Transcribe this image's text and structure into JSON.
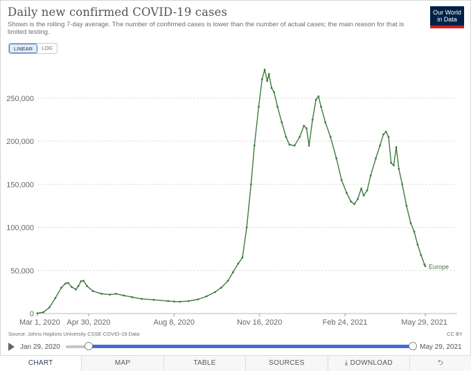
{
  "title": "Daily new confirmed COVID-19 cases",
  "subtitle": "Shown is the rolling 7-day average. The number of confirmed cases is lower than the number of actual cases; the main reason for that is limited testing.",
  "logo": {
    "line1": "Our World",
    "line2": "in Data"
  },
  "scale": {
    "linear": "LINEAR",
    "log": "LOG"
  },
  "source": "Source: Johns Hopkins University CSSE COVID-19 Data",
  "license": "CC BY",
  "timeline": {
    "start": "Jan 29, 2020",
    "end": "May 29, 2021"
  },
  "tabs": [
    "CHART",
    "MAP",
    "TABLE",
    "SOURCES",
    "DOWNLOAD"
  ],
  "colors": {
    "line": "#3c7a3c",
    "accent": "#3e6fd8"
  },
  "icons": {
    "download": "download-icon",
    "share": "share-icon",
    "play": "play-icon"
  },
  "chart_data": {
    "type": "line",
    "title": "Daily new confirmed COVID-19 cases",
    "ylim": [
      0,
      290000
    ],
    "yticks": [
      0,
      50000,
      100000,
      150000,
      200000,
      250000
    ],
    "ytick_labels": [
      "0",
      "50,000",
      "100,000",
      "150,000",
      "200,000",
      "250,000"
    ],
    "xticks": [
      "2020-03-01",
      "2020-04-30",
      "2020-08-08",
      "2020-11-16",
      "2021-02-24",
      "2021-05-29"
    ],
    "xtick_labels": [
      "Mar 1, 2020",
      "Apr 30, 2020",
      "Aug 8, 2020",
      "Nov 16, 2020",
      "Feb 24, 2021",
      "May 29, 2021"
    ],
    "grid": "horizontal dashed",
    "series": [
      {
        "name": "Europe",
        "color": "#3c7a3c",
        "points": [
          [
            "2020-03-01",
            300
          ],
          [
            "2020-03-08",
            1500
          ],
          [
            "2020-03-15",
            7000
          ],
          [
            "2020-03-22",
            18000
          ],
          [
            "2020-03-29",
            30000
          ],
          [
            "2020-04-03",
            35000
          ],
          [
            "2020-04-06",
            35500
          ],
          [
            "2020-04-10",
            31000
          ],
          [
            "2020-04-15",
            28000
          ],
          [
            "2020-04-18",
            32000
          ],
          [
            "2020-04-21",
            37500
          ],
          [
            "2020-04-24",
            38000
          ],
          [
            "2020-04-28",
            32000
          ],
          [
            "2020-05-05",
            26000
          ],
          [
            "2020-05-15",
            23000
          ],
          [
            "2020-05-25",
            22000
          ],
          [
            "2020-06-01",
            23000
          ],
          [
            "2020-06-10",
            21000
          ],
          [
            "2020-06-20",
            19000
          ],
          [
            "2020-07-01",
            17000
          ],
          [
            "2020-07-15",
            16000
          ],
          [
            "2020-08-01",
            14500
          ],
          [
            "2020-08-08",
            14000
          ],
          [
            "2020-08-15",
            13800
          ],
          [
            "2020-08-25",
            14500
          ],
          [
            "2020-09-05",
            16500
          ],
          [
            "2020-09-15",
            20000
          ],
          [
            "2020-09-25",
            25000
          ],
          [
            "2020-10-02",
            30000
          ],
          [
            "2020-10-10",
            38000
          ],
          [
            "2020-10-16",
            48000
          ],
          [
            "2020-10-22",
            58000
          ],
          [
            "2020-10-27",
            65000
          ],
          [
            "2020-11-01",
            100000
          ],
          [
            "2020-11-06",
            150000
          ],
          [
            "2020-11-10",
            195000
          ],
          [
            "2020-11-15",
            240000
          ],
          [
            "2020-11-19",
            272000
          ],
          [
            "2020-11-22",
            283000
          ],
          [
            "2020-11-25",
            270000
          ],
          [
            "2020-11-27",
            278000
          ],
          [
            "2020-11-30",
            262000
          ],
          [
            "2020-12-03",
            257000
          ],
          [
            "2020-12-07",
            240000
          ],
          [
            "2020-12-12",
            222000
          ],
          [
            "2020-12-17",
            205000
          ],
          [
            "2020-12-21",
            196000
          ],
          [
            "2020-12-27",
            195000
          ],
          [
            "2021-01-02",
            205000
          ],
          [
            "2021-01-07",
            218000
          ],
          [
            "2021-01-10",
            215000
          ],
          [
            "2021-01-13",
            195000
          ],
          [
            "2021-01-17",
            225000
          ],
          [
            "2021-01-21",
            248000
          ],
          [
            "2021-01-24",
            252000
          ],
          [
            "2021-01-27",
            240000
          ],
          [
            "2021-02-01",
            222000
          ],
          [
            "2021-02-07",
            205000
          ],
          [
            "2021-02-14",
            180000
          ],
          [
            "2021-02-20",
            155000
          ],
          [
            "2021-02-26",
            140000
          ],
          [
            "2021-03-03",
            130000
          ],
          [
            "2021-03-07",
            127000
          ],
          [
            "2021-03-11",
            133000
          ],
          [
            "2021-03-15",
            145000
          ],
          [
            "2021-03-18",
            137000
          ],
          [
            "2021-03-22",
            143000
          ],
          [
            "2021-03-26",
            160000
          ],
          [
            "2021-04-01",
            180000
          ],
          [
            "2021-04-06",
            195000
          ],
          [
            "2021-04-10",
            208000
          ],
          [
            "2021-04-13",
            211000
          ],
          [
            "2021-04-16",
            205000
          ],
          [
            "2021-04-19",
            175000
          ],
          [
            "2021-04-22",
            172000
          ],
          [
            "2021-04-25",
            193000
          ],
          [
            "2021-04-28",
            168000
          ],
          [
            "2021-05-02",
            150000
          ],
          [
            "2021-05-07",
            125000
          ],
          [
            "2021-05-12",
            105000
          ],
          [
            "2021-05-16",
            95000
          ],
          [
            "2021-05-20",
            80000
          ],
          [
            "2021-05-24",
            68000
          ],
          [
            "2021-05-28",
            57000
          ],
          [
            "2021-05-29",
            55000
          ]
        ]
      }
    ]
  }
}
